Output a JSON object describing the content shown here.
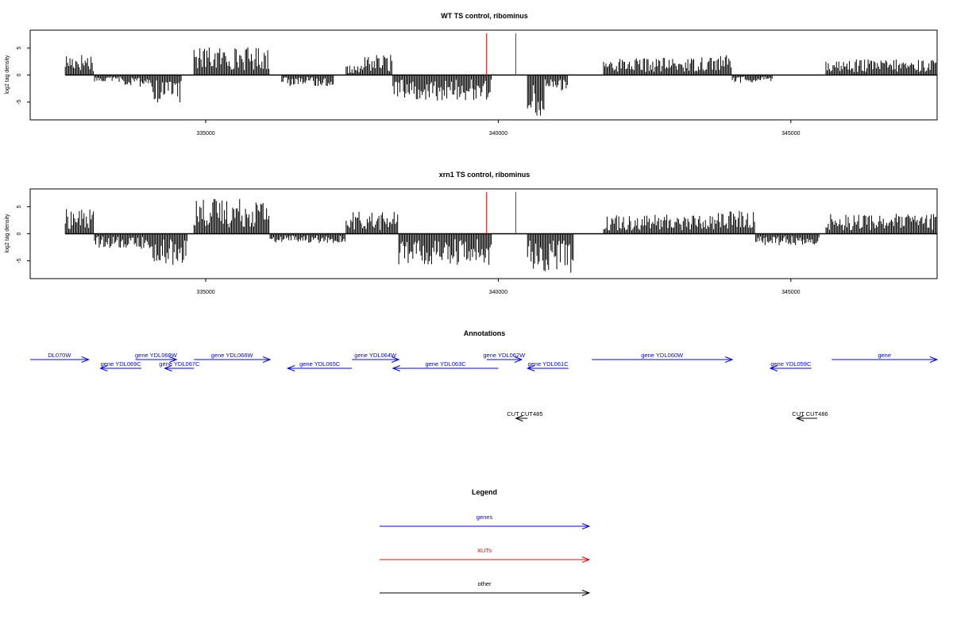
{
  "chart_data": {
    "type": "bar",
    "x_range": [
      332000,
      347500
    ],
    "x_ticks": [
      335000,
      340000,
      345000
    ],
    "y_range": [
      -8,
      8
    ],
    "y_ticks": [
      -5,
      0,
      5
    ],
    "ylabel": "log2 tag density",
    "colors": {
      "genes": "#0000ff",
      "xuts": "#ff0000",
      "other": "#000000",
      "bars": "#000000"
    },
    "tracks": [
      {
        "title": "WT TS control, ribominus",
        "marker_positions": [
          339800,
          340300
        ],
        "data_extent": [
          332600,
          347500
        ],
        "segments": [
          {
            "start": 332600,
            "end": 333100,
            "strand": "+",
            "level": 2.8
          },
          {
            "start": 333100,
            "end": 333600,
            "strand": "-",
            "level": 1.0
          },
          {
            "start": 333600,
            "end": 334100,
            "strand": "-",
            "level": 1.5
          },
          {
            "start": 334100,
            "end": 334600,
            "strand": "-",
            "level": 3.5
          },
          {
            "start": 334800,
            "end": 336100,
            "strand": "+",
            "level": 3.6
          },
          {
            "start": 336300,
            "end": 337200,
            "strand": "-",
            "level": 1.4
          },
          {
            "start": 337400,
            "end": 337700,
            "strand": "+",
            "level": 1.2
          },
          {
            "start": 337700,
            "end": 338200,
            "strand": "+",
            "level": 2.6
          },
          {
            "start": 338200,
            "end": 339900,
            "strand": "-",
            "level": 3.3
          },
          {
            "start": 340500,
            "end": 340800,
            "strand": "-",
            "level": 5.5
          },
          {
            "start": 340800,
            "end": 341200,
            "strand": "-",
            "level": 2.0
          },
          {
            "start": 341800,
            "end": 343400,
            "strand": "+",
            "level": 2.2
          },
          {
            "start": 343400,
            "end": 344000,
            "strand": "+",
            "level": 2.6
          },
          {
            "start": 344000,
            "end": 344700,
            "strand": "-",
            "level": 1.0
          },
          {
            "start": 345600,
            "end": 347500,
            "strand": "+",
            "level": 2.0
          }
        ]
      },
      {
        "title": "xrn1 TS control, ribominus",
        "marker_positions": [
          339800,
          340300
        ],
        "data_extent": [
          332600,
          347500
        ],
        "segments": [
          {
            "start": 332600,
            "end": 333100,
            "strand": "+",
            "level": 3.2
          },
          {
            "start": 333100,
            "end": 333600,
            "strand": "-",
            "level": 1.8
          },
          {
            "start": 333600,
            "end": 334100,
            "strand": "-",
            "level": 2.0
          },
          {
            "start": 334100,
            "end": 334700,
            "strand": "-",
            "level": 4.0
          },
          {
            "start": 334800,
            "end": 336100,
            "strand": "+",
            "level": 4.6
          },
          {
            "start": 336100,
            "end": 337400,
            "strand": "-",
            "level": 1.2
          },
          {
            "start": 337400,
            "end": 338300,
            "strand": "+",
            "level": 2.8
          },
          {
            "start": 338300,
            "end": 339900,
            "strand": "-",
            "level": 4.0
          },
          {
            "start": 340500,
            "end": 341300,
            "strand": "-",
            "level": 5.0
          },
          {
            "start": 341800,
            "end": 343700,
            "strand": "+",
            "level": 2.5
          },
          {
            "start": 343700,
            "end": 344400,
            "strand": "+",
            "level": 3.0
          },
          {
            "start": 344400,
            "end": 345500,
            "strand": "-",
            "level": 1.5
          },
          {
            "start": 345600,
            "end": 347500,
            "strand": "+",
            "level": 2.6
          }
        ]
      }
    ],
    "annotations": {
      "title": "Annotations",
      "genes": [
        {
          "label": "DL070W",
          "start": 332000,
          "end": 333000,
          "strand": "+",
          "row": 0
        },
        {
          "label": "gene YDL068W",
          "start": 333800,
          "end": 334500,
          "strand": "+",
          "row": 0
        },
        {
          "label": "gene YDL069C",
          "start": 333200,
          "end": 333900,
          "strand": "-",
          "row": 1
        },
        {
          "label": "gene YDL067C",
          "start": 334300,
          "end": 334800,
          "strand": "-",
          "row": 1
        },
        {
          "label": "gene YDL066W",
          "start": 334800,
          "end": 336100,
          "strand": "+",
          "row": 0
        },
        {
          "label": "gene YDL065C",
          "start": 336400,
          "end": 337500,
          "strand": "-",
          "row": 1
        },
        {
          "label": "gene YDL064W",
          "start": 337500,
          "end": 338300,
          "strand": "+",
          "row": 0
        },
        {
          "label": "gene YDL063C",
          "start": 338200,
          "end": 340000,
          "strand": "-",
          "row": 1
        },
        {
          "label": "gene YDL062W",
          "start": 339800,
          "end": 340400,
          "strand": "+",
          "row": 0
        },
        {
          "label": "gene YDL061C",
          "start": 340500,
          "end": 341200,
          "strand": "-",
          "row": 1
        },
        {
          "label": "gene YDL060W",
          "start": 341600,
          "end": 344000,
          "strand": "+",
          "row": 0
        },
        {
          "label": "gene YDL059C",
          "start": 344650,
          "end": 345350,
          "strand": "-",
          "row": 1
        },
        {
          "label": "gene",
          "start": 345700,
          "end": 347700,
          "strand": "+",
          "row": 0
        }
      ],
      "others": [
        {
          "label": "CUT CUT485",
          "start": 340300,
          "end": 340500,
          "strand": "-"
        },
        {
          "label": "CUT CUT486",
          "start": 345100,
          "end": 345450,
          "strand": "-"
        }
      ]
    },
    "legend": {
      "title": "Legend",
      "items": [
        {
          "label": "genes",
          "color": "#0000ff"
        },
        {
          "label": "XUTs",
          "color": "#ff0000"
        },
        {
          "label": "other",
          "color": "#000000"
        }
      ]
    }
  }
}
